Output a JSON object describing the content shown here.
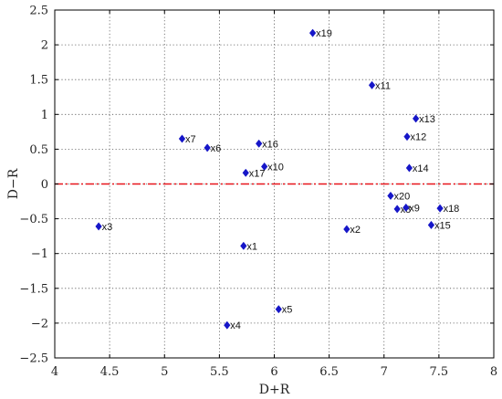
{
  "chart_data": {
    "type": "scatter",
    "title": "",
    "xlabel": "D+R",
    "ylabel": "D−R",
    "xlim": [
      4,
      8
    ],
    "ylim": [
      -2.5,
      2.5
    ],
    "x_ticks": [
      4,
      4.5,
      5,
      5.5,
      6,
      6.5,
      7,
      7.5,
      8
    ],
    "x_tick_labels": [
      "4",
      "4.5",
      "5",
      "5.5",
      "6",
      "6.5",
      "7",
      "7.5",
      "8"
    ],
    "y_ticks": [
      2.5,
      2,
      1.5,
      1,
      0.5,
      0,
      -0.5,
      -1,
      -1.5,
      -2,
      -2.5
    ],
    "y_tick_labels": [
      "2.5",
      "2",
      "1.5",
      "1",
      "0.5",
      "0",
      "−0.5",
      "−1",
      "−1.5",
      "−2",
      "−2.5"
    ],
    "grid": true,
    "reference_line": {
      "y": 0,
      "color": "#e8141b",
      "style": "dash-dot"
    },
    "marker": {
      "shape": "diamond",
      "color": "#1616c8"
    },
    "points": [
      {
        "label": "x1",
        "x": 5.72,
        "y": -0.89
      },
      {
        "label": "x2",
        "x": 6.66,
        "y": -0.65
      },
      {
        "label": "x3",
        "x": 4.4,
        "y": -0.61
      },
      {
        "label": "x4",
        "x": 5.57,
        "y": -2.03
      },
      {
        "label": "x5",
        "x": 6.04,
        "y": -1.8
      },
      {
        "label": "x6",
        "x": 5.39,
        "y": 0.52
      },
      {
        "label": "x7",
        "x": 5.16,
        "y": 0.65
      },
      {
        "label": "x8",
        "x": 7.12,
        "y": -0.36
      },
      {
        "label": "x9",
        "x": 7.2,
        "y": -0.34
      },
      {
        "label": "x10",
        "x": 5.91,
        "y": 0.25
      },
      {
        "label": "x11",
        "x": 6.89,
        "y": 1.42
      },
      {
        "label": "x12",
        "x": 7.21,
        "y": 0.68
      },
      {
        "label": "x13",
        "x": 7.29,
        "y": 0.94
      },
      {
        "label": "x14",
        "x": 7.23,
        "y": 0.23
      },
      {
        "label": "x15",
        "x": 7.43,
        "y": -0.59
      },
      {
        "label": "x16",
        "x": 5.86,
        "y": 0.58
      },
      {
        "label": "x17",
        "x": 5.74,
        "y": 0.16
      },
      {
        "label": "x18",
        "x": 7.51,
        "y": -0.35
      },
      {
        "label": "x19",
        "x": 6.35,
        "y": 2.17
      },
      {
        "label": "x20",
        "x": 7.06,
        "y": -0.17
      }
    ]
  }
}
